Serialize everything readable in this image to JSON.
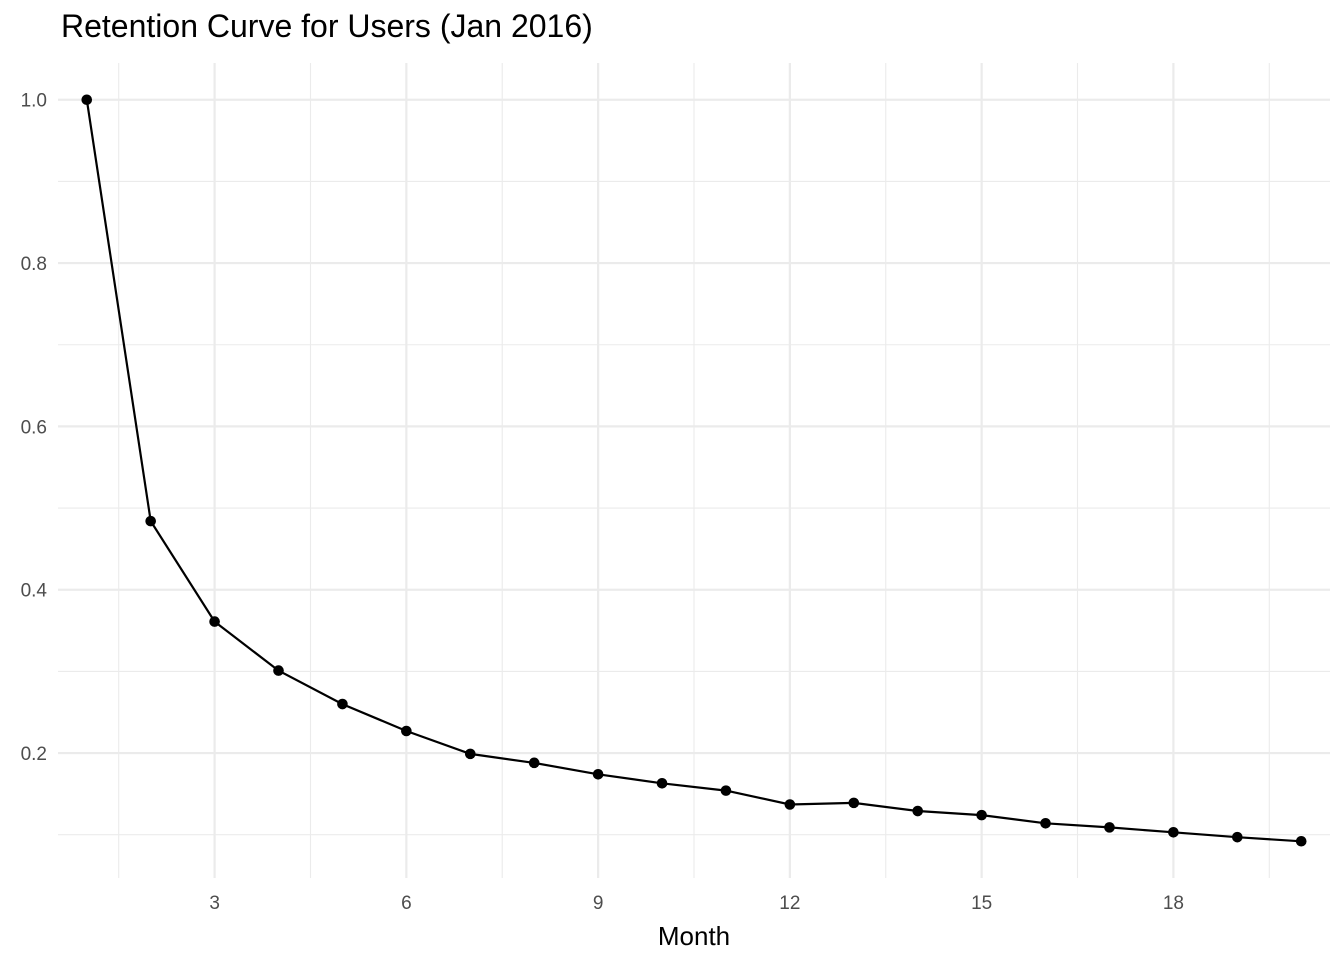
{
  "chart_data": {
    "type": "line",
    "title": "Retention Curve for Users (Jan 2016)",
    "xlabel": "Month",
    "ylabel": "",
    "xlim": [
      0.55,
      20.45
    ],
    "ylim": [
      0.047,
      1.045
    ],
    "x_ticks": [
      3,
      6,
      9,
      12,
      15,
      18
    ],
    "y_ticks": [
      0.2,
      0.4,
      0.6,
      0.8,
      1.0
    ],
    "y_tick_labels": [
      "0.2",
      "0.4",
      "0.6",
      "0.8",
      "1.0"
    ],
    "grid": true,
    "legend": "none",
    "line_color": "#000000",
    "grid_color": "#ebebeb",
    "series": [
      {
        "x": [
          1,
          2,
          3,
          4,
          5,
          6,
          7,
          8,
          9,
          10,
          11,
          12,
          13,
          14,
          15,
          16,
          17,
          18,
          19,
          20
        ],
        "values": [
          1.0,
          0.484,
          0.361,
          0.301,
          0.26,
          0.227,
          0.199,
          0.188,
          0.174,
          0.163,
          0.154,
          0.137,
          0.139,
          0.129,
          0.124,
          0.114,
          0.109,
          0.103,
          0.097,
          0.092
        ]
      }
    ]
  }
}
